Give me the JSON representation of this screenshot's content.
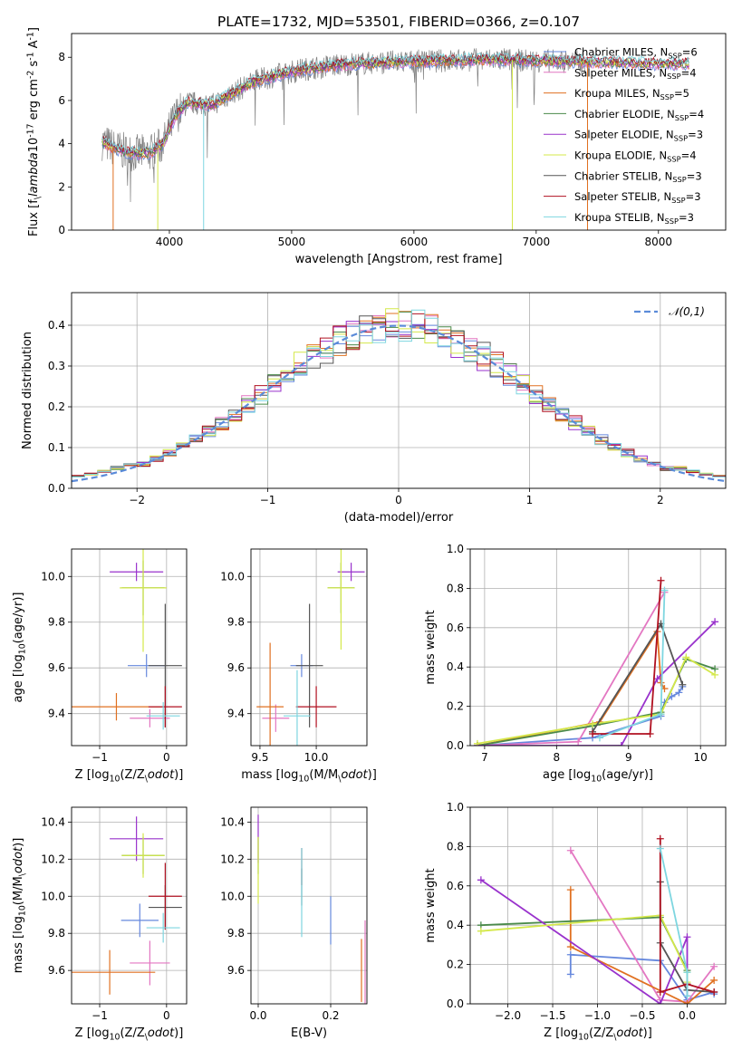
{
  "figure": {
    "title": "PLATE=1732, MJD=53501, FIBERID=0366, z=0.107"
  },
  "chart_data": [
    {
      "id": "spectrum",
      "type": "line",
      "xlabel": "wavelength [Angstrom, rest frame]",
      "ylabel": "Flux [f$_\\lambda$10$^{-17}$ erg cm$^{-2}$ s$^{-1}$ A$^{-1}$]",
      "xlim": [
        3200,
        8550
      ],
      "ylim": [
        0,
        9.1
      ],
      "xticks": [
        4000,
        5000,
        6000,
        7000,
        8000
      ],
      "yticks": [
        0,
        2,
        4,
        6,
        8
      ],
      "grid": false,
      "legend_position": "upper-right",
      "observed_color": "#808080",
      "continuum": {
        "x": [
          3450,
          3550,
          3650,
          3750,
          3850,
          3950,
          4050,
          4150,
          4250,
          4350,
          4500,
          4700,
          4900,
          5100,
          5300,
          5500,
          5700,
          5900,
          6100,
          6300,
          6500,
          6700,
          6900,
          7100,
          7300,
          7500,
          7700,
          7900,
          8100,
          8250
        ],
        "y": [
          4.1,
          3.8,
          3.6,
          3.55,
          3.6,
          4.0,
          5.3,
          5.9,
          5.85,
          5.8,
          6.3,
          6.9,
          7.2,
          7.45,
          7.6,
          7.7,
          7.75,
          7.8,
          7.82,
          7.85,
          7.88,
          7.9,
          7.85,
          7.83,
          7.8,
          7.78,
          7.75,
          7.72,
          7.7,
          7.7
        ]
      },
      "series": [
        {
          "name": "Chabrier MILES, N$_{SSP}$=6",
          "color": "#6688dd"
        },
        {
          "name": "Salpeter MILES, N$_{SSP}$=4",
          "color": "#e377c2"
        },
        {
          "name": "Kroupa MILES, N$_{SSP}$=5",
          "color": "#e07020"
        },
        {
          "name": "Chabrier ELODIE, N$_{SSP}$=4",
          "color": "#4a8a4a"
        },
        {
          "name": "Salpeter ELODIE, N$_{SSP}$=3",
          "color": "#9932cc"
        },
        {
          "name": "Kroupa ELODIE, N$_{SSP}$=4",
          "color": "#d4e84a"
        },
        {
          "name": "Chabrier STELIB, N$_{SSP}$=3",
          "color": "#555555"
        },
        {
          "name": "Salpeter STELIB, N$_{SSP}$=3",
          "color": "#b01020"
        },
        {
          "name": "Kroupa STELIB, N$_{SSP}$=3",
          "color": "#7ed6e0"
        }
      ]
    },
    {
      "id": "residuals",
      "type": "line",
      "xlabel": "(data-model)/error",
      "ylabel": "Normed distribution",
      "xlim": [
        -2.5,
        2.5
      ],
      "ylim": [
        0,
        0.48
      ],
      "xticks": [
        -2,
        -1,
        0,
        1,
        2
      ],
      "yticks": [
        0.0,
        0.1,
        0.2,
        0.3,
        0.4
      ],
      "grid": true,
      "legend_position": "upper-right",
      "gauss_label": "$\\mathcal{N}(0,1)$",
      "gauss_color": "#5b8bd9",
      "bin_width": 0.1,
      "bins_start": -2.5,
      "histogram_colors": [
        "#6688dd",
        "#e377c2",
        "#e07020",
        "#4a8a4a",
        "#9932cc",
        "#d4e84a",
        "#555555",
        "#b01020",
        "#7ed6e0"
      ]
    },
    {
      "id": "age_vs_Z",
      "type": "scatter",
      "xlabel": "Z [log$_{10}$(Z/Z$_\\odot$)]",
      "ylabel": "age  [log$_{10}$(age/yr)]",
      "xlim": [
        -1.42,
        0.3
      ],
      "ylim": [
        9.26,
        10.12
      ],
      "xticks": [
        -1,
        0
      ],
      "yticks": [
        9.4,
        9.6,
        9.8,
        10.0
      ],
      "grid": true,
      "points": [
        {
          "x": -0.3,
          "y": 9.61,
          "ex": 0.28,
          "ey": 0.05,
          "color": "#6688dd"
        },
        {
          "x": -0.25,
          "y": 9.38,
          "ex": 0.3,
          "ey": 0.04,
          "color": "#e377c2"
        },
        {
          "x": -0.75,
          "y": 9.43,
          "ex": 0.68,
          "ey": 0.06,
          "color": "#e07020"
        },
        {
          "x": -0.35,
          "y": 9.95,
          "ex": 0.32,
          "ey": 0.12,
          "color": "#4a8a4a"
        },
        {
          "x": -0.45,
          "y": 10.02,
          "ex": 0.4,
          "ey": 0.04,
          "color": "#9932cc"
        },
        {
          "x": -0.35,
          "y": 9.95,
          "ex": 0.35,
          "ey": 0.28,
          "color": "#d4e84a"
        },
        {
          "x": -0.02,
          "y": 9.61,
          "ex": 0.25,
          "ey": 0.27,
          "color": "#555555"
        },
        {
          "x": -0.02,
          "y": 9.43,
          "ex": 0.25,
          "ey": 0.09,
          "color": "#b01020"
        },
        {
          "x": -0.05,
          "y": 9.39,
          "ex": 0.25,
          "ey": 0.06,
          "color": "#7ed6e0"
        }
      ]
    },
    {
      "id": "age_vs_mass",
      "type": "scatter",
      "xlabel": "mass [log$_{10}$(M/M$_\\odot$)]",
      "ylabel": "",
      "xlim": [
        9.42,
        10.45
      ],
      "ylim": [
        9.26,
        10.12
      ],
      "xticks": [
        9.5,
        10.0
      ],
      "yticks": [
        9.4,
        9.6,
        9.8,
        10.0
      ],
      "grid": true,
      "points": [
        {
          "x": 9.87,
          "y": 9.61,
          "ex": 0.1,
          "ey": 0.05,
          "color": "#6688dd"
        },
        {
          "x": 9.64,
          "y": 9.38,
          "ex": 0.12,
          "ey": 0.06,
          "color": "#e377c2"
        },
        {
          "x": 9.59,
          "y": 9.43,
          "ex": 0.12,
          "ey": 0.28,
          "color": "#e07020"
        },
        {
          "x": 10.22,
          "y": 9.95,
          "ex": 0.12,
          "ey": 0.11,
          "color": "#4a8a4a"
        },
        {
          "x": 10.31,
          "y": 10.02,
          "ex": 0.12,
          "ey": 0.04,
          "color": "#9932cc"
        },
        {
          "x": 10.22,
          "y": 9.95,
          "ex": 0.12,
          "ey": 0.27,
          "color": "#d4e84a"
        },
        {
          "x": 9.94,
          "y": 9.61,
          "ex": 0.12,
          "ey": 0.27,
          "color": "#555555"
        },
        {
          "x": 10.0,
          "y": 9.43,
          "ex": 0.18,
          "ey": 0.09,
          "color": "#b01020"
        },
        {
          "x": 9.83,
          "y": 9.39,
          "ex": 0.12,
          "ey": 0.2,
          "color": "#7ed6e0"
        }
      ]
    },
    {
      "id": "mass_weight_vs_age",
      "type": "line",
      "xlabel": "age  [log$_{10}$(age/yr)]",
      "ylabel": "mass weight",
      "xlim": [
        6.8,
        10.35
      ],
      "ylim": [
        0,
        1.0
      ],
      "xticks": [
        7,
        8,
        9,
        10
      ],
      "yticks": [
        0.0,
        0.2,
        0.4,
        0.6,
        0.8,
        1.0
      ],
      "grid": true,
      "series": [
        {
          "color": "#6688dd",
          "x": [
            6.9,
            8.5,
            9.45,
            9.5,
            9.6,
            9.7,
            9.75
          ],
          "y": [
            0.0,
            0.04,
            0.15,
            0.22,
            0.25,
            0.27,
            0.3
          ]
        },
        {
          "color": "#e377c2",
          "x": [
            6.9,
            8.3,
            9.5
          ],
          "y": [
            0.0,
            0.02,
            0.78
          ]
        },
        {
          "color": "#e07020",
          "x": [
            6.9,
            8.6,
            9.4,
            9.45,
            9.5
          ],
          "y": [
            0.0,
            0.12,
            0.58,
            0.32,
            0.29
          ]
        },
        {
          "color": "#4a8a4a",
          "x": [
            6.9,
            8.5,
            9.45,
            9.8,
            10.2
          ],
          "y": [
            0.0,
            0.1,
            0.17,
            0.44,
            0.39
          ]
        },
        {
          "color": "#9932cc",
          "x": [
            6.9,
            8.9,
            9.4,
            10.2
          ],
          "y": [
            0.0,
            0.0,
            0.34,
            0.63
          ]
        },
        {
          "color": "#d4e84a",
          "x": [
            6.9,
            8.5,
            9.45,
            9.8,
            10.2
          ],
          "y": [
            0.01,
            0.11,
            0.16,
            0.45,
            0.36
          ]
        },
        {
          "color": "#555555",
          "x": [
            8.5,
            9.45,
            9.75
          ],
          "y": [
            0.07,
            0.62,
            0.31
          ]
        },
        {
          "color": "#b01020",
          "x": [
            8.5,
            9.3,
            9.45
          ],
          "y": [
            0.06,
            0.06,
            0.84
          ]
        },
        {
          "color": "#7ed6e0",
          "x": [
            8.6,
            9.45,
            9.5
          ],
          "y": [
            0.04,
            0.16,
            0.79
          ]
        }
      ]
    },
    {
      "id": "mass_vs_Z",
      "type": "scatter",
      "xlabel": "Z [log$_{10}$(Z/Z$_\\odot$)]",
      "ylabel": "mass [log$_{10}$(M/M$_\\odot$)]",
      "xlim": [
        -1.42,
        0.3
      ],
      "ylim": [
        9.42,
        10.48
      ],
      "xticks": [
        -1,
        0
      ],
      "yticks": [
        9.6,
        9.8,
        10.0,
        10.2,
        10.4
      ],
      "grid": true,
      "points": [
        {
          "x": -0.4,
          "y": 9.87,
          "ex": 0.28,
          "ey": 0.09,
          "color": "#6688dd"
        },
        {
          "x": -0.25,
          "y": 9.64,
          "ex": 0.3,
          "ey": 0.12,
          "color": "#e377c2"
        },
        {
          "x": -0.85,
          "y": 9.59,
          "ex": 0.68,
          "ey": 0.12,
          "color": "#e07020"
        },
        {
          "x": -0.35,
          "y": 10.22,
          "ex": 0.32,
          "ey": 0.1,
          "color": "#4a8a4a"
        },
        {
          "x": -0.45,
          "y": 10.31,
          "ex": 0.4,
          "ey": 0.12,
          "color": "#9932cc"
        },
        {
          "x": -0.35,
          "y": 10.22,
          "ex": 0.32,
          "ey": 0.12,
          "color": "#d4e84a"
        },
        {
          "x": -0.02,
          "y": 9.94,
          "ex": 0.25,
          "ey": 0.12,
          "color": "#555555"
        },
        {
          "x": -0.02,
          "y": 10.0,
          "ex": 0.25,
          "ey": 0.18,
          "color": "#b01020"
        },
        {
          "x": -0.05,
          "y": 9.83,
          "ex": 0.25,
          "ey": 0.08,
          "color": "#7ed6e0"
        }
      ]
    },
    {
      "id": "mass_vs_ebv",
      "type": "scatter",
      "xlabel": "E(B-V)",
      "ylabel": "",
      "xlim": [
        -0.02,
        0.3
      ],
      "ylim": [
        9.42,
        10.48
      ],
      "xticks": [
        0.0,
        0.2
      ],
      "yticks": [
        9.6,
        9.8,
        10.0,
        10.2,
        10.4
      ],
      "grid": true,
      "points": [
        {
          "x": 0.2,
          "y": 9.87,
          "ex": 0.0,
          "ey": 0.13,
          "color": "#6688dd"
        },
        {
          "x": 0.295,
          "y": 9.64,
          "ex": 0.0,
          "ey": 0.23,
          "color": "#e377c2"
        },
        {
          "x": 0.285,
          "y": 9.6,
          "ex": 0.0,
          "ey": 0.17,
          "color": "#e07020"
        },
        {
          "x": 0.0,
          "y": 10.22,
          "ex": 0.0,
          "ey": 0.1,
          "color": "#4a8a4a"
        },
        {
          "x": 0.0,
          "y": 10.31,
          "ex": 0.0,
          "ey": 0.13,
          "color": "#9932cc"
        },
        {
          "x": 0.0,
          "y": 10.14,
          "ex": 0.0,
          "ey": 0.18,
          "color": "#d4e84a"
        },
        {
          "x": 0.12,
          "y": 10.05,
          "ex": 0.0,
          "ey": 0.1,
          "color": "#555555"
        },
        {
          "x": 0.12,
          "y": 10.16,
          "ex": 0.0,
          "ey": 0.1,
          "color": "#b01020"
        },
        {
          "x": 0.12,
          "y": 10.02,
          "ex": 0.0,
          "ey": 0.24,
          "color": "#7ed6e0"
        }
      ]
    },
    {
      "id": "mass_weight_vs_Z",
      "type": "line",
      "xlabel": "Z [log$_{10}$(Z/Z$_\\odot$)]",
      "ylabel": "mass weight",
      "xlim": [
        -2.42,
        0.43
      ],
      "ylim": [
        0,
        1.0
      ],
      "xticks": [
        -2.0,
        -1.5,
        -1.0,
        -0.5,
        0.0
      ],
      "yticks": [
        0.0,
        0.2,
        0.4,
        0.6,
        0.8,
        1.0
      ],
      "grid": true,
      "series": [
        {
          "color": "#6688dd",
          "x": [
            -1.3,
            -1.3,
            -0.3,
            0.0,
            0.3,
            0.3
          ],
          "y": [
            0.15,
            0.25,
            0.22,
            0.02,
            0.06,
            0.05
          ]
        },
        {
          "color": "#e377c2",
          "x": [
            -1.3,
            -0.3,
            0.0,
            0.3
          ],
          "y": [
            0.78,
            0.02,
            0.01,
            0.19
          ]
        },
        {
          "color": "#e07020",
          "x": [
            -1.3,
            -1.3,
            0.0,
            0.3
          ],
          "y": [
            0.58,
            0.29,
            0.0,
            0.12
          ]
        },
        {
          "color": "#4a8a4a",
          "x": [
            -2.3,
            -0.3,
            0.0,
            0.0
          ],
          "y": [
            0.4,
            0.44,
            0.17,
            0.1
          ]
        },
        {
          "color": "#9932cc",
          "x": [
            -2.3,
            -0.3,
            0.0,
            0.0
          ],
          "y": [
            0.63,
            0.0,
            0.34,
            0.04
          ]
        },
        {
          "color": "#d4e84a",
          "x": [
            -2.3,
            -0.3,
            0.0,
            0.0
          ],
          "y": [
            0.37,
            0.45,
            0.16,
            0.11
          ]
        },
        {
          "color": "#555555",
          "x": [
            -0.3,
            -0.3,
            0.0,
            0.3
          ],
          "y": [
            0.62,
            0.31,
            0.07,
            0.06
          ]
        },
        {
          "color": "#b01020",
          "x": [
            -0.3,
            -0.3,
            0.0,
            0.3
          ],
          "y": [
            0.84,
            0.06,
            0.1,
            0.06
          ]
        },
        {
          "color": "#7ed6e0",
          "x": [
            -0.3,
            0.0,
            0.0
          ],
          "y": [
            0.79,
            0.16,
            0.04
          ]
        }
      ]
    }
  ]
}
